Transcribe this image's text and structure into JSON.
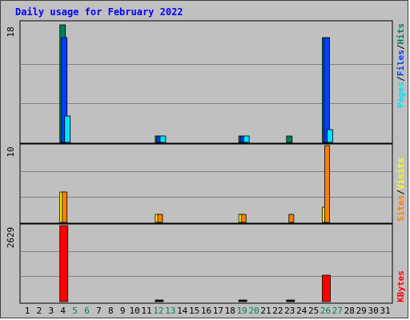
{
  "title": "Daily usage for February 2022",
  "colors": {
    "hits": "#00805c",
    "files": "#0040ff",
    "pages": "#00e0ff",
    "visits": "#ffff00",
    "sites": "#ff8000",
    "kbytes": "#ff0000",
    "weekend_day": "#00805c",
    "weekday": "#000000",
    "panel_bg": "#c0c0c0"
  },
  "panels": {
    "top": {
      "max_label": "18",
      "legend": [
        "Pages",
        "/",
        "Files",
        "/",
        "Hits"
      ]
    },
    "middle": {
      "max_label": "10",
      "legend": [
        "Sites",
        "/",
        "Visits"
      ]
    },
    "bottom": {
      "max_label": "2629",
      "legend": [
        "KBytes"
      ]
    }
  },
  "chart_data": {
    "type": "bar",
    "title": "Daily usage for February 2022",
    "days": [
      "1",
      "2",
      "3",
      "4",
      "5",
      "6",
      "7",
      "8",
      "9",
      "10",
      "11",
      "12",
      "13",
      "14",
      "15",
      "16",
      "17",
      "18",
      "19",
      "20",
      "21",
      "22",
      "23",
      "24",
      "25",
      "26",
      "27",
      "28",
      "29",
      "30",
      "31"
    ],
    "weekend_days": [
      "5",
      "6",
      "12",
      "13",
      "19",
      "20",
      "26",
      "27"
    ],
    "top": {
      "ylim": [
        0,
        18
      ],
      "series": [
        {
          "name": "Hits",
          "values": [
            0,
            0,
            0,
            18,
            0,
            0,
            0,
            0,
            0,
            0,
            0,
            1,
            0,
            0,
            0,
            0,
            0,
            0,
            1,
            0,
            0,
            0,
            1,
            0,
            0,
            16,
            0,
            0,
            0,
            0,
            0
          ]
        },
        {
          "name": "Files",
          "values": [
            0,
            0,
            0,
            16,
            0,
            0,
            0,
            0,
            0,
            0,
            0,
            1,
            0,
            0,
            0,
            0,
            0,
            0,
            1,
            0,
            0,
            0,
            0,
            0,
            0,
            16,
            0,
            0,
            0,
            0,
            0
          ]
        },
        {
          "name": "Pages",
          "values": [
            0,
            0,
            0,
            4,
            0,
            0,
            0,
            0,
            0,
            0,
            0,
            1,
            0,
            0,
            0,
            0,
            0,
            0,
            1,
            0,
            0,
            0,
            0,
            0,
            0,
            2,
            0,
            0,
            0,
            0,
            0
          ]
        }
      ]
    },
    "middle": {
      "ylim": [
        0,
        10
      ],
      "series": [
        {
          "name": "Visits",
          "values": [
            0,
            0,
            0,
            4,
            0,
            0,
            0,
            0,
            0,
            0,
            0,
            1,
            0,
            0,
            0,
            0,
            0,
            0,
            1,
            0,
            0,
            0,
            0,
            0,
            0,
            2,
            0,
            0,
            0,
            0,
            0
          ]
        },
        {
          "name": "Sites",
          "values": [
            0,
            0,
            0,
            4,
            0,
            0,
            0,
            0,
            0,
            0,
            0,
            1,
            0,
            0,
            0,
            0,
            0,
            0,
            1,
            0,
            0,
            0,
            1,
            0,
            0,
            10,
            0,
            0,
            0,
            0,
            0
          ]
        }
      ]
    },
    "bottom": {
      "ylim": [
        0,
        2629
      ],
      "series": [
        {
          "name": "KBytes",
          "values": [
            0,
            0,
            0,
            2629,
            0,
            0,
            0,
            0,
            0,
            0,
            0,
            60,
            0,
            0,
            0,
            0,
            0,
            0,
            50,
            0,
            0,
            0,
            50,
            0,
            0,
            900,
            0,
            0,
            0,
            0,
            0
          ]
        }
      ]
    }
  }
}
